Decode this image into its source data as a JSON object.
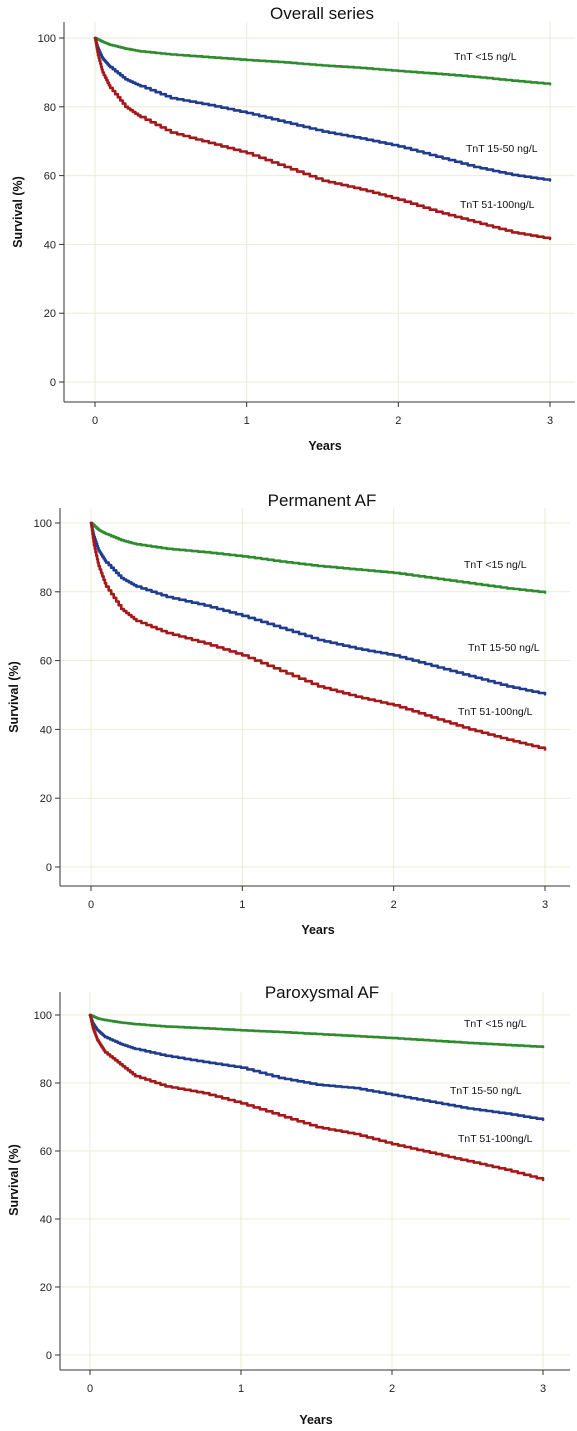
{
  "colors": {
    "green": "#2e8b2e",
    "blue": "#1f3c8f",
    "red": "#a31919",
    "grid": "#ecebd6"
  },
  "chart_data": [
    {
      "type": "line",
      "title": "Overall series",
      "xlabel": "Years",
      "ylabel": "Survival (%)",
      "xlim": [
        0,
        3
      ],
      "ylim": [
        0,
        100
      ],
      "xticks": [
        "0",
        "1",
        "2",
        "3"
      ],
      "yticks": [
        "0",
        "20",
        "40",
        "60",
        "80",
        "100"
      ],
      "grid": true,
      "series": [
        {
          "name": "TnT <15 ng/L",
          "color": "#2e8b2e",
          "x": [
            0,
            0.05,
            0.1,
            0.2,
            0.3,
            0.5,
            0.75,
            1.0,
            1.25,
            1.5,
            1.75,
            2.0,
            2.25,
            2.5,
            2.75,
            3.0
          ],
          "y": [
            100,
            98.9,
            98.0,
            96.9,
            96.1,
            95.2,
            94.4,
            93.6,
            92.9,
            92.0,
            91.3,
            90.4,
            89.6,
            88.7,
            87.6,
            86.6
          ]
        },
        {
          "name": "TnT 15-50 ng/L",
          "color": "#1f3c8f",
          "x": [
            0,
            0.02,
            0.05,
            0.1,
            0.2,
            0.3,
            0.5,
            0.75,
            1.0,
            1.25,
            1.5,
            1.75,
            2.0,
            2.25,
            2.5,
            2.75,
            3.0
          ],
          "y": [
            100,
            97.0,
            94.0,
            91.5,
            88.0,
            86.0,
            82.5,
            80.5,
            78.2,
            75.5,
            72.8,
            70.8,
            68.5,
            65.5,
            62.5,
            60.2,
            58.6
          ]
        },
        {
          "name": "TnT 51-100ng/L",
          "color": "#a31919",
          "x": [
            0,
            0.02,
            0.05,
            0.1,
            0.2,
            0.3,
            0.5,
            0.75,
            1.0,
            1.25,
            1.5,
            1.75,
            2.0,
            2.25,
            2.5,
            2.75,
            3.0
          ],
          "y": [
            100,
            95.0,
            90.0,
            85.5,
            80.0,
            77.0,
            72.5,
            69.5,
            66.5,
            62.5,
            58.5,
            56.0,
            53.0,
            49.5,
            46.5,
            43.5,
            41.6
          ]
        }
      ],
      "curve_labels": [
        "TnT <15 ng/L",
        "TnT 15-50 ng/L",
        "TnT 51-100ng/L"
      ]
    },
    {
      "type": "line",
      "title": "Permanent AF",
      "xlabel": "Years",
      "ylabel": "Survival (%)",
      "xlim": [
        0,
        3
      ],
      "ylim": [
        0,
        100
      ],
      "xticks": [
        "0",
        "1",
        "2",
        "3"
      ],
      "yticks": [
        "0",
        "20",
        "40",
        "60",
        "80",
        "100"
      ],
      "grid": true,
      "series": [
        {
          "name": "TnT <15 ng/L",
          "color": "#2e8b2e",
          "x": [
            0,
            0.05,
            0.1,
            0.2,
            0.3,
            0.5,
            0.75,
            1.0,
            1.25,
            1.5,
            1.75,
            2.0,
            2.25,
            2.5,
            2.75,
            3.0
          ],
          "y": [
            100,
            98.0,
            96.8,
            95.0,
            93.8,
            92.5,
            91.5,
            90.3,
            88.8,
            87.5,
            86.5,
            85.5,
            84.0,
            82.5,
            81.0,
            79.8
          ]
        },
        {
          "name": "TnT 15-50 ng/L",
          "color": "#1f3c8f",
          "x": [
            0,
            0.02,
            0.05,
            0.1,
            0.2,
            0.3,
            0.5,
            0.75,
            1.0,
            1.25,
            1.5,
            1.75,
            2.0,
            2.25,
            2.5,
            2.75,
            3.0
          ],
          "y": [
            100,
            96.0,
            92.0,
            88.5,
            84.0,
            81.5,
            78.5,
            76.0,
            73.0,
            69.5,
            66.0,
            63.5,
            61.5,
            58.5,
            55.5,
            52.5,
            50.2
          ]
        },
        {
          "name": "TnT 51-100ng/L",
          "color": "#a31919",
          "x": [
            0,
            0.02,
            0.05,
            0.1,
            0.2,
            0.3,
            0.5,
            0.75,
            1.0,
            1.25,
            1.5,
            1.75,
            2.0,
            2.25,
            2.5,
            2.75,
            3.0
          ],
          "y": [
            100,
            93.5,
            87.5,
            81.5,
            75.0,
            71.5,
            68.0,
            65.0,
            61.5,
            57.0,
            52.5,
            49.5,
            47.0,
            43.5,
            40.0,
            37.0,
            34.2
          ]
        }
      ],
      "curve_labels": [
        "TnT <15 ng/L",
        "TnT 15-50 ng/L",
        "TnT 51-100ng/L"
      ]
    },
    {
      "type": "line",
      "title": "Paroxysmal AF",
      "xlabel": "Years",
      "ylabel": "Survival (%)",
      "xlim": [
        0,
        3
      ],
      "ylim": [
        0,
        100
      ],
      "xticks": [
        "0",
        "1",
        "2",
        "3"
      ],
      "yticks": [
        "0",
        "20",
        "40",
        "60",
        "80",
        "100"
      ],
      "grid": true,
      "series": [
        {
          "name": "TnT <15 ng/L",
          "color": "#2e8b2e",
          "x": [
            0,
            0.05,
            0.1,
            0.2,
            0.3,
            0.5,
            0.75,
            1.0,
            1.25,
            1.5,
            1.75,
            2.0,
            2.25,
            2.5,
            2.75,
            3.0
          ],
          "y": [
            100,
            99.0,
            98.5,
            97.8,
            97.3,
            96.6,
            96.1,
            95.5,
            95.0,
            94.4,
            93.8,
            93.2,
            92.5,
            91.8,
            91.2,
            90.6
          ]
        },
        {
          "name": "TnT 15-50 ng/L",
          "color": "#1f3c8f",
          "x": [
            0,
            0.02,
            0.05,
            0.1,
            0.2,
            0.3,
            0.5,
            0.75,
            1.0,
            1.25,
            1.5,
            1.75,
            2.0,
            2.25,
            2.5,
            2.75,
            3.0
          ],
          "y": [
            100,
            97.5,
            95.5,
            93.5,
            91.5,
            90.0,
            88.0,
            86.2,
            84.5,
            81.5,
            79.5,
            78.5,
            76.5,
            74.5,
            72.5,
            71.0,
            69.2
          ]
        },
        {
          "name": "TnT 51-100ng/L",
          "color": "#a31919",
          "x": [
            0,
            0.02,
            0.05,
            0.1,
            0.2,
            0.3,
            0.5,
            0.75,
            1.0,
            1.25,
            1.5,
            1.75,
            2.0,
            2.25,
            2.5,
            2.75,
            3.0
          ],
          "y": [
            100,
            96.0,
            92.5,
            89.0,
            85.5,
            82.0,
            79.0,
            77.0,
            74.0,
            70.5,
            67.0,
            65.0,
            62.0,
            59.5,
            57.0,
            54.5,
            51.5
          ]
        }
      ],
      "curve_labels": [
        "TnT <15 ng/L",
        "TnT 15-50 ng/L",
        "TnT 51-100ng/L"
      ]
    }
  ]
}
